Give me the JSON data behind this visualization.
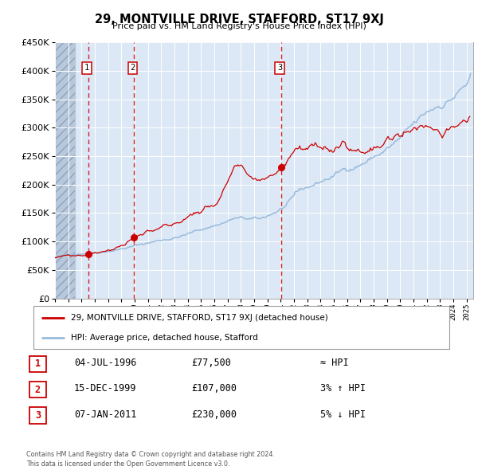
{
  "title": "29, MONTVILLE DRIVE, STAFFORD, ST17 9XJ",
  "subtitle": "Price paid vs. HM Land Registry's House Price Index (HPI)",
  "xlim": [
    1994.0,
    2025.5
  ],
  "ylim": [
    0,
    450000
  ],
  "plot_bg_color": "#dce8f5",
  "hatch_bg_color": "#c8d4e4",
  "grid_color": "#ffffff",
  "red_line_color": "#cc0000",
  "blue_line_color": "#99bbdd",
  "vline_color": "#cc0000",
  "sale_points": [
    {
      "year": 1996.503,
      "price": 77500,
      "label": "1"
    },
    {
      "year": 1999.958,
      "price": 107000,
      "label": "2"
    },
    {
      "year": 2011.019,
      "price": 230000,
      "label": "3"
    }
  ],
  "legend_red_label": "29, MONTVILLE DRIVE, STAFFORD, ST17 9XJ (detached house)",
  "legend_blue_label": "HPI: Average price, detached house, Stafford",
  "table_rows": [
    {
      "num": "1",
      "date": "04-JUL-1996",
      "price": "£77,500",
      "rel": "≈ HPI"
    },
    {
      "num": "2",
      "date": "15-DEC-1999",
      "price": "£107,000",
      "rel": "3% ↑ HPI"
    },
    {
      "num": "3",
      "date": "07-JAN-2011",
      "price": "£230,000",
      "rel": "5% ↓ HPI"
    }
  ],
  "footer": "Contains HM Land Registry data © Crown copyright and database right 2024.\nThis data is licensed under the Open Government Licence v3.0.",
  "sale1_year_exact": 1996.503,
  "sale2_year_exact": 1999.958,
  "sale3_year_exact": 2011.019,
  "hatch_end_year": 1995.5
}
